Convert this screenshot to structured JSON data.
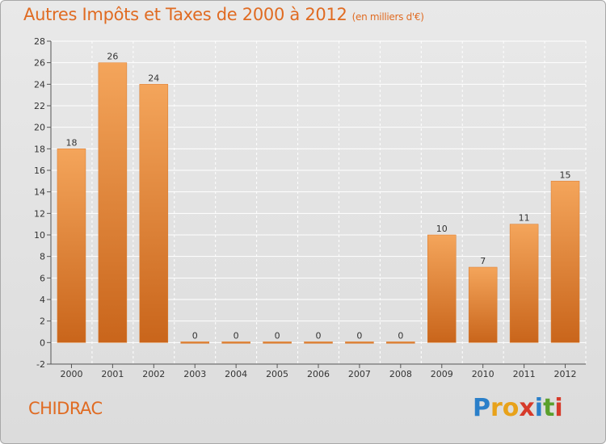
{
  "title": "Autres Impôts et Taxes de 2000 à 2012",
  "subtitle": "(en milliers d'€)",
  "commune": "CHIDRAC",
  "logo": {
    "letters": [
      "P",
      "r",
      "o",
      "x",
      "i",
      "t",
      "i"
    ],
    "colors": [
      "#2a7fc9",
      "#e8a21a",
      "#e8a21a",
      "#d63a2a",
      "#2a7fc9",
      "#5aa02c",
      "#d63a2a"
    ]
  },
  "chart_data": {
    "type": "bar",
    "categories": [
      "2000",
      "2001",
      "2002",
      "2003",
      "2004",
      "2005",
      "2006",
      "2007",
      "2008",
      "2009",
      "2010",
      "2011",
      "2012"
    ],
    "values": [
      18,
      26,
      24,
      0,
      0,
      0,
      0,
      0,
      0,
      10,
      7,
      11,
      15
    ],
    "data_labels": [
      "18",
      "26",
      "24",
      "0",
      "0",
      "0",
      "0",
      "0",
      "0",
      "10",
      "7",
      "11",
      "15"
    ],
    "ylim": [
      -2,
      28
    ],
    "yticks": [
      -2,
      0,
      2,
      4,
      6,
      8,
      10,
      12,
      14,
      16,
      18,
      20,
      22,
      24,
      26,
      28
    ],
    "grid": true,
    "bar_color": "#ef8a2e",
    "bar_color_dark": "#c9641a"
  }
}
